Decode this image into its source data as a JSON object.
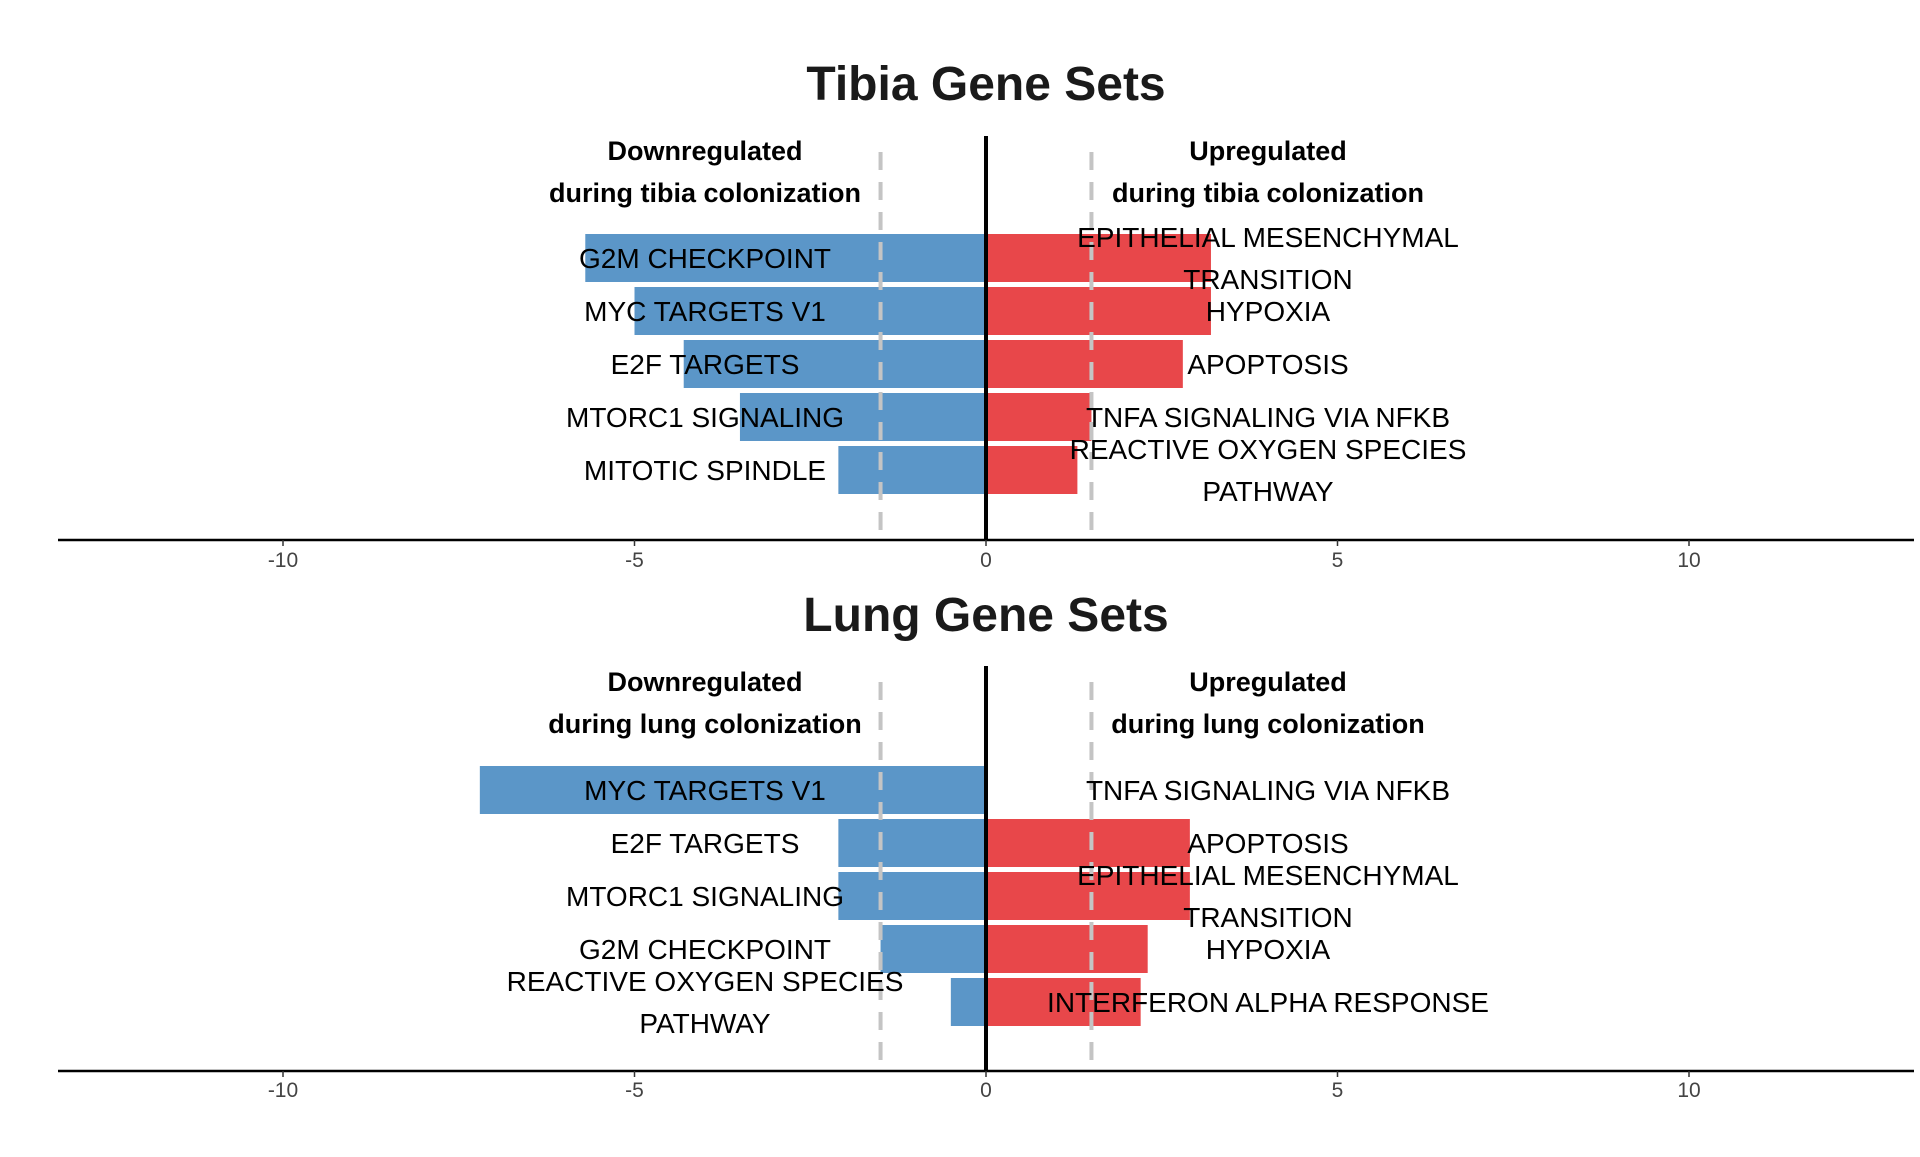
{
  "chart_data": [
    {
      "type": "bar",
      "orientation": "horizontal",
      "title": "Tibia Gene Sets",
      "down_label": [
        "Downregulated",
        "during tibia colonization"
      ],
      "up_label": [
        "Upregulated",
        "during tibia colonization"
      ],
      "xlim": [
        -13.2,
        13.2
      ],
      "xticks": [
        -10,
        -5,
        0,
        5,
        10
      ],
      "threshold_lines": [
        -1.5,
        1.5
      ],
      "down_color": "#5B96C8",
      "up_color": "#E8474A",
      "downregulated": [
        {
          "name": [
            "G2M CHECKPOINT"
          ],
          "value": -5.7
        },
        {
          "name": [
            "MYC TARGETS V1"
          ],
          "value": -5.0
        },
        {
          "name": [
            "E2F TARGETS"
          ],
          "value": -4.3
        },
        {
          "name": [
            "MTORC1 SIGNALING"
          ],
          "value": -3.5
        },
        {
          "name": [
            "MITOTIC SPINDLE"
          ],
          "value": -2.1
        }
      ],
      "upregulated": [
        {
          "name": [
            "EPITHELIAL MESENCHYMAL",
            "TRANSITION"
          ],
          "value": 3.2
        },
        {
          "name": [
            "HYPOXIA"
          ],
          "value": 3.2
        },
        {
          "name": [
            "APOPTOSIS"
          ],
          "value": 2.8
        },
        {
          "name": [
            "TNFA SIGNALING VIA NFKB"
          ],
          "value": 1.5
        },
        {
          "name": [
            "REACTIVE OXYGEN SPECIES",
            "PATHWAY"
          ],
          "value": 1.3
        }
      ]
    },
    {
      "type": "bar",
      "orientation": "horizontal",
      "title": "Lung Gene Sets",
      "down_label": [
        "Downregulated",
        "during lung colonization"
      ],
      "up_label": [
        "Upregulated",
        "during lung colonization"
      ],
      "xlim": [
        -13.2,
        13.2
      ],
      "xticks": [
        -10,
        -5,
        0,
        5,
        10
      ],
      "threshold_lines": [
        -1.5,
        1.5
      ],
      "down_color": "#5B96C8",
      "up_color": "#E8474A",
      "downregulated": [
        {
          "name": [
            "MYC TARGETS V1"
          ],
          "value": -7.2
        },
        {
          "name": [
            "E2F TARGETS"
          ],
          "value": -2.1
        },
        {
          "name": [
            "MTORC1 SIGNALING"
          ],
          "value": -2.1
        },
        {
          "name": [
            "G2M CHECKPOINT"
          ],
          "value": -1.5
        },
        {
          "name": [
            "REACTIVE OXYGEN SPECIES",
            "PATHWAY"
          ],
          "value": -0.5
        }
      ],
      "upregulated": [
        {
          "name": [
            "TNFA SIGNALING VIA NFKB"
          ],
          "value": 0
        },
        {
          "name": [
            "APOPTOSIS"
          ],
          "value": 2.9
        },
        {
          "name": [
            "EPITHELIAL MESENCHYMAL",
            "TRANSITION"
          ],
          "value": 2.9
        },
        {
          "name": [
            "HYPOXIA"
          ],
          "value": 2.3
        },
        {
          "name": [
            "INTERFERON ALPHA RESPONSE"
          ],
          "value": 2.2
        }
      ]
    }
  ]
}
